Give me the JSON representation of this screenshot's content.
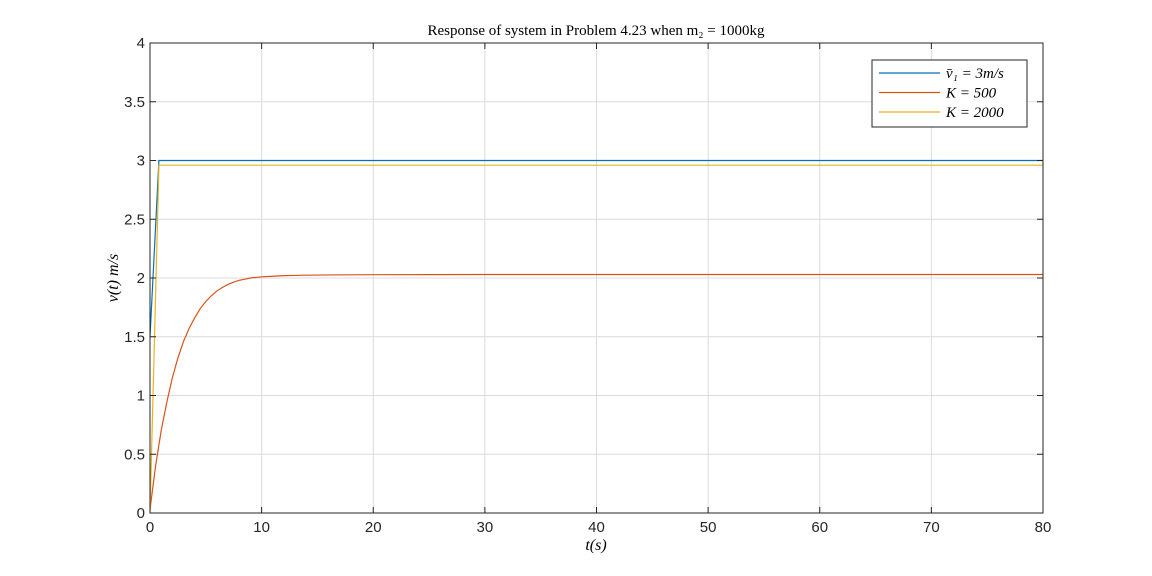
{
  "chart_data": {
    "type": "line",
    "title": "Response of system in Problem 4.23 when m₂ = 1000kg",
    "xlabel": "t(s)",
    "ylabel": "v(t) m/s",
    "xlim": [
      0,
      80
    ],
    "ylim": [
      0,
      4
    ],
    "xticks": [
      0,
      10,
      20,
      30,
      40,
      50,
      60,
      70,
      80
    ],
    "yticks": [
      0,
      0.5,
      1,
      1.5,
      2,
      2.5,
      3,
      3.5,
      4
    ],
    "xtick_labels": [
      "0",
      "10",
      "20",
      "30",
      "40",
      "50",
      "60",
      "70",
      "80"
    ],
    "ytick_labels": [
      "0",
      "0.5",
      "1",
      "1.5",
      "2",
      "2.5",
      "3",
      "3.5",
      "4"
    ],
    "grid": true,
    "legend_position": "top-right",
    "series": [
      {
        "name": "v̄₁ = 3m/s",
        "color": "#0072BD",
        "x": [
          0,
          0.8,
          80
        ],
        "y": [
          1.5,
          3.0,
          3.0
        ]
      },
      {
        "name": "K = 500",
        "color": "#D95319",
        "x": [
          0,
          0.5,
          1,
          1.5,
          2,
          2.5,
          3,
          3.5,
          4,
          4.5,
          5,
          5.5,
          6,
          6.5,
          7,
          7.5,
          8,
          8.5,
          9,
          9.5,
          10,
          11,
          12,
          13,
          14,
          15,
          16,
          18,
          20,
          25,
          30,
          40,
          50,
          60,
          70,
          80
        ],
        "y": [
          0.03,
          0.4,
          0.7,
          0.94,
          1.15,
          1.32,
          1.46,
          1.57,
          1.66,
          1.74,
          1.8,
          1.85,
          1.89,
          1.92,
          1.945,
          1.965,
          1.98,
          1.99,
          2.0,
          2.005,
          2.01,
          2.015,
          2.02,
          2.022,
          2.024,
          2.025,
          2.026,
          2.027,
          2.028,
          2.029,
          2.03,
          2.03,
          2.03,
          2.03,
          2.03,
          2.03
        ]
      },
      {
        "name": "K = 2000",
        "color": "#EDB120",
        "x": [
          0,
          0.8,
          80
        ],
        "y": [
          0.0,
          2.96,
          2.96
        ]
      }
    ]
  }
}
